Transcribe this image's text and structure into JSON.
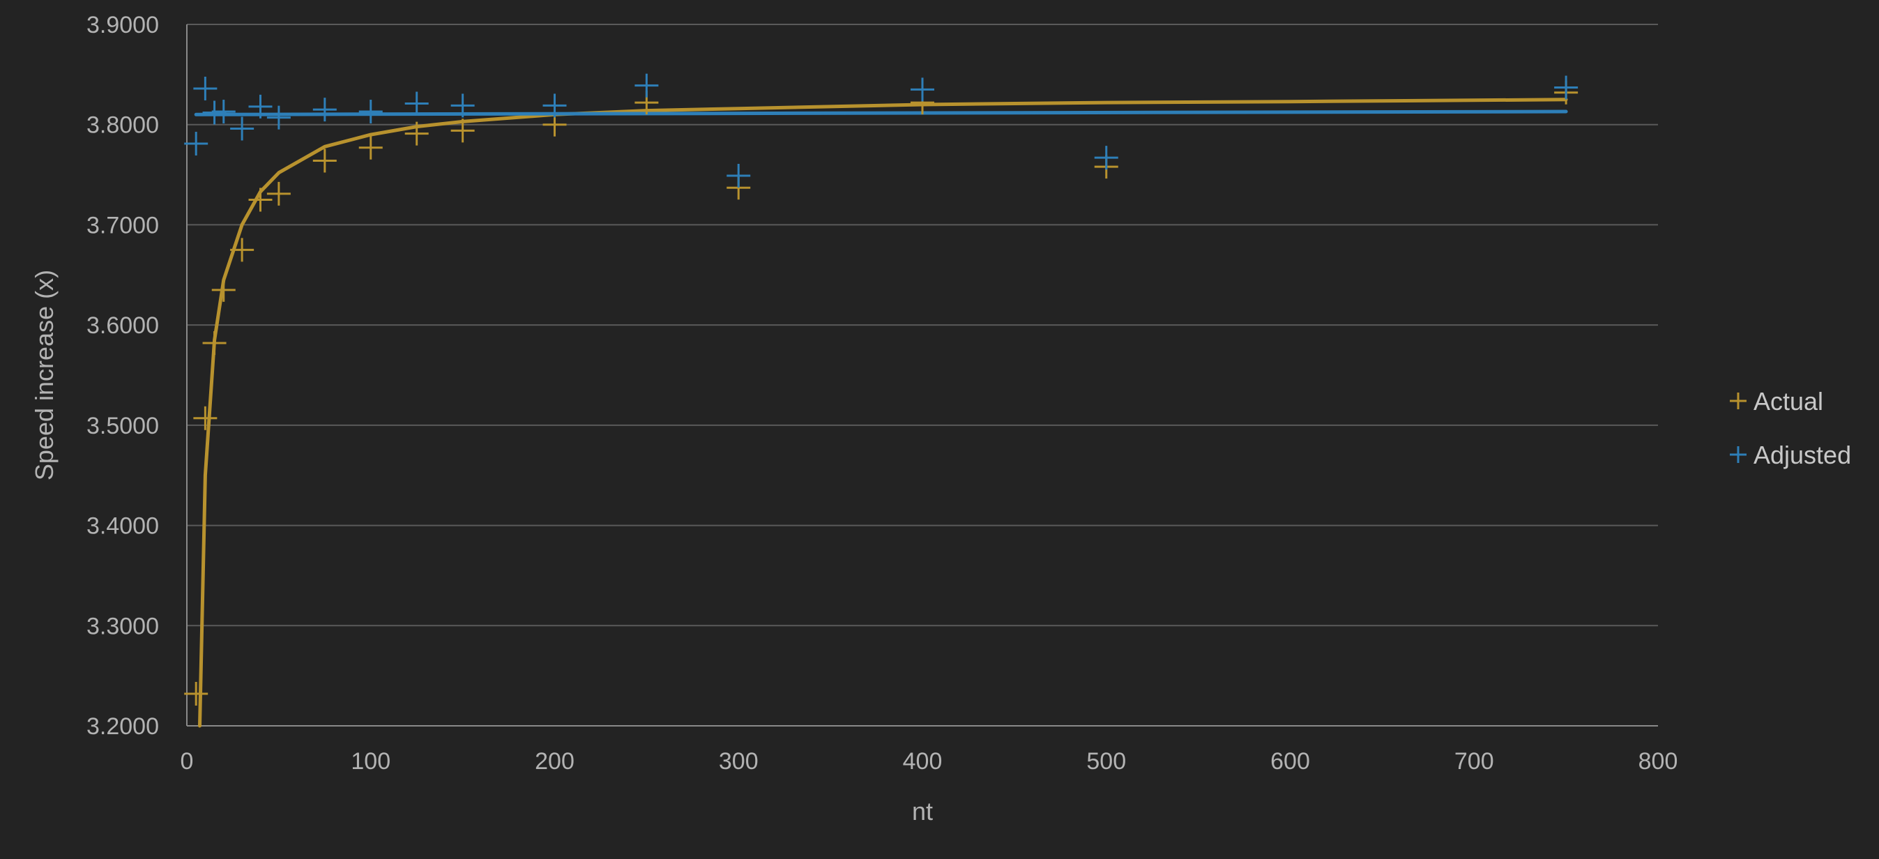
{
  "chart_data": {
    "type": "scatter",
    "xlabel": "nt",
    "ylabel": "Speed increase (x)",
    "xlim": [
      0,
      800
    ],
    "ylim": [
      3.2,
      3.9
    ],
    "x_ticks": [
      0,
      100,
      200,
      300,
      400,
      500,
      600,
      700,
      800
    ],
    "x_tick_labels": [
      "0",
      "100",
      "200",
      "300",
      "400",
      "500",
      "600",
      "700",
      "800"
    ],
    "y_ticks": [
      3.2,
      3.3,
      3.4,
      3.5,
      3.6,
      3.7,
      3.8,
      3.9
    ],
    "y_tick_labels": [
      "3.2000",
      "3.3000",
      "3.4000",
      "3.5000",
      "3.6000",
      "3.7000",
      "3.8000",
      "3.9000"
    ],
    "grid": "horizontal",
    "legend_position": "right",
    "series": [
      {
        "name": "Actual",
        "color": "#b8922e",
        "marker": "plus",
        "points": [
          {
            "x": 5,
            "y": 3.232
          },
          {
            "x": 10,
            "y": 3.507
          },
          {
            "x": 15,
            "y": 3.582
          },
          {
            "x": 20,
            "y": 3.635
          },
          {
            "x": 30,
            "y": 3.675
          },
          {
            "x": 40,
            "y": 3.725
          },
          {
            "x": 50,
            "y": 3.731
          },
          {
            "x": 75,
            "y": 3.764
          },
          {
            "x": 100,
            "y": 3.777
          },
          {
            "x": 125,
            "y": 3.791
          },
          {
            "x": 150,
            "y": 3.794
          },
          {
            "x": 200,
            "y": 3.8
          },
          {
            "x": 250,
            "y": 3.822
          },
          {
            "x": 300,
            "y": 3.737
          },
          {
            "x": 400,
            "y": 3.822
          },
          {
            "x": 500,
            "y": 3.758
          },
          {
            "x": 750,
            "y": 3.832
          }
        ],
        "trendline": {
          "type": "fit",
          "points": [
            {
              "x": 7,
              "y": 3.2
            },
            {
              "x": 10,
              "y": 3.45
            },
            {
              "x": 15,
              "y": 3.585
            },
            {
              "x": 20,
              "y": 3.645
            },
            {
              "x": 30,
              "y": 3.7
            },
            {
              "x": 40,
              "y": 3.733
            },
            {
              "x": 50,
              "y": 3.752
            },
            {
              "x": 75,
              "y": 3.778
            },
            {
              "x": 100,
              "y": 3.79
            },
            {
              "x": 125,
              "y": 3.798
            },
            {
              "x": 150,
              "y": 3.803
            },
            {
              "x": 200,
              "y": 3.81
            },
            {
              "x": 250,
              "y": 3.814
            },
            {
              "x": 300,
              "y": 3.816
            },
            {
              "x": 400,
              "y": 3.82
            },
            {
              "x": 500,
              "y": 3.822
            },
            {
              "x": 600,
              "y": 3.823
            },
            {
              "x": 750,
              "y": 3.825
            }
          ]
        }
      },
      {
        "name": "Adjusted",
        "color": "#2e7fb8",
        "marker": "plus",
        "points": [
          {
            "x": 5,
            "y": 3.781
          },
          {
            "x": 10,
            "y": 3.836
          },
          {
            "x": 15,
            "y": 3.812
          },
          {
            "x": 20,
            "y": 3.813
          },
          {
            "x": 30,
            "y": 3.796
          },
          {
            "x": 40,
            "y": 3.818
          },
          {
            "x": 50,
            "y": 3.807
          },
          {
            "x": 75,
            "y": 3.815
          },
          {
            "x": 100,
            "y": 3.813
          },
          {
            "x": 125,
            "y": 3.821
          },
          {
            "x": 150,
            "y": 3.819
          },
          {
            "x": 200,
            "y": 3.819
          },
          {
            "x": 250,
            "y": 3.839
          },
          {
            "x": 300,
            "y": 3.749
          },
          {
            "x": 400,
            "y": 3.835
          },
          {
            "x": 500,
            "y": 3.767
          },
          {
            "x": 750,
            "y": 3.837
          }
        ],
        "trendline": {
          "type": "linear",
          "points": [
            {
              "x": 5,
              "y": 3.81
            },
            {
              "x": 750,
              "y": 3.813
            }
          ]
        }
      }
    ]
  }
}
